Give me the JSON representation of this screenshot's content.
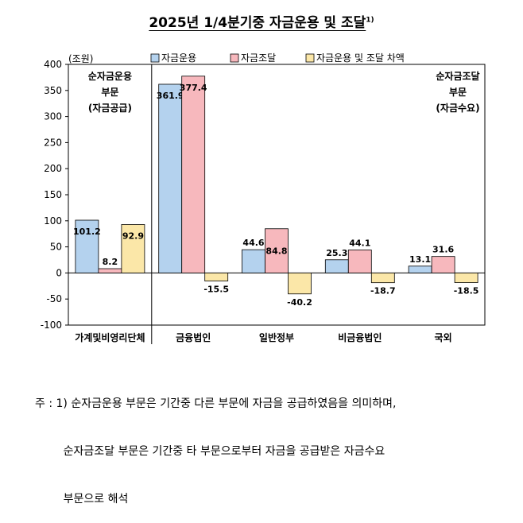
{
  "title": "2025년 1/4분기중 자금운용 및 조달",
  "title_sup": "1)",
  "chart_data": {
    "type": "bar",
    "ylabel": "(조원)",
    "ylim": [
      -100,
      400
    ],
    "yticks": [
      -100,
      -50,
      0,
      50,
      100,
      150,
      200,
      250,
      300,
      350,
      400
    ],
    "categories": [
      "가계및비영리단체",
      "금융법인",
      "일반정부",
      "비금융법인",
      "국외"
    ],
    "series": [
      {
        "name": "자금운용",
        "color": "#b4d2ee",
        "values": [
          101.2,
          361.9,
          44.6,
          25.3,
          13.1
        ]
      },
      {
        "name": "자금조달",
        "color": "#f7b8bd",
        "values": [
          8.2,
          377.4,
          84.8,
          44.1,
          31.6
        ]
      },
      {
        "name": "자금운용 및 조달 차액",
        "color": "#fbe7a8",
        "values": [
          92.9,
          -15.5,
          -40.2,
          -18.7,
          -18.5
        ]
      }
    ],
    "legend_position": "top",
    "grid": false,
    "annotations": {
      "left": [
        "순자금운용",
        "부문",
        "(자금공급)"
      ],
      "right": [
        "순자금조달",
        "부문",
        "(자금수요)"
      ]
    }
  },
  "footnote": {
    "lines": [
      "주 : 1) 순자금운용 부문은 기간중 다른 부문에 자금을 공급하였음을 의미하며,",
      "        순자금조달 부문은 기간중 타 부문으로부터 자금을 공급받은 자금수요",
      "        부문으로 해석"
    ]
  }
}
